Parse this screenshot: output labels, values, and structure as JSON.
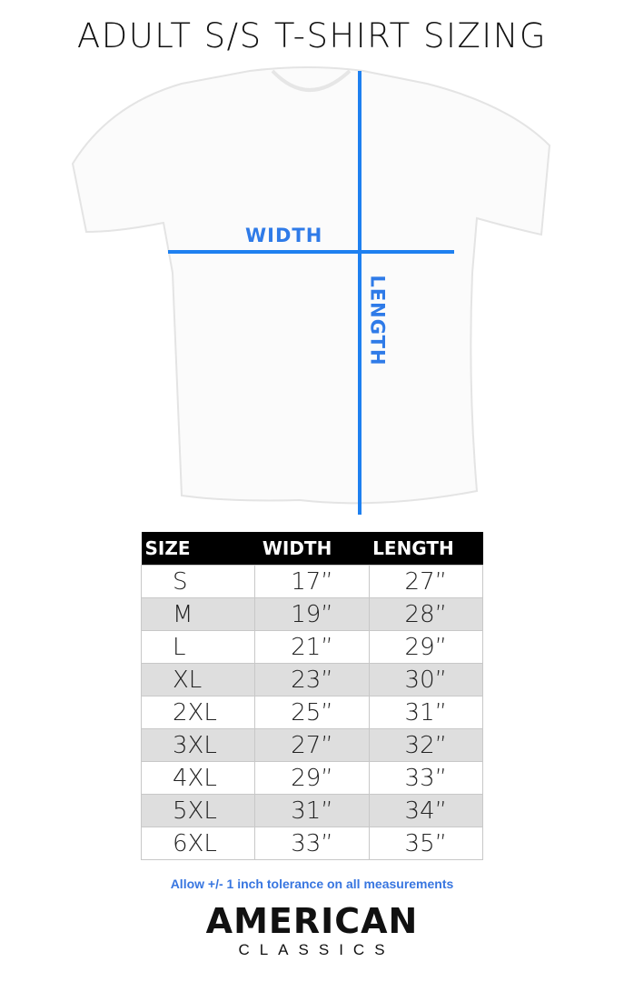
{
  "title": "ADULT S/S T-SHIRT SIZING",
  "diagram": {
    "width_label": "WIDTH",
    "length_label": "LENGTH",
    "accent_color": "#2f7be8"
  },
  "table": {
    "headers": [
      "SIZE",
      "WIDTH",
      "LENGTH"
    ],
    "rows": [
      [
        "S",
        "17”",
        "27”"
      ],
      [
        "M",
        "19”",
        "28”"
      ],
      [
        "L",
        "21”",
        "29”"
      ],
      [
        "XL",
        "23”",
        "30”"
      ],
      [
        "2XL",
        "25”",
        "31”"
      ],
      [
        "3XL",
        "27”",
        "32”"
      ],
      [
        "4XL",
        "29”",
        "33”"
      ],
      [
        "5XL",
        "31”",
        "34”"
      ],
      [
        "6XL",
        "33”",
        "35”"
      ]
    ]
  },
  "note": "Allow +/- 1 inch tolerance on all measurements",
  "logo": {
    "line1": "AMERICAN",
    "line2": "CLASSICS"
  }
}
